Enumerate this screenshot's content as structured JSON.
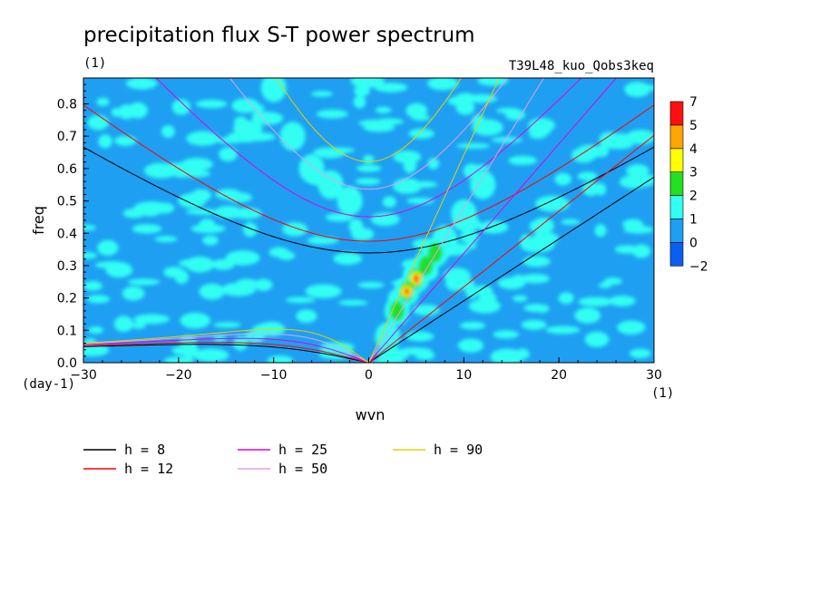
{
  "header": {
    "title": "precipitation flux S-T power spectrum",
    "units": "(1)",
    "experiment": "T39L48_kuo_Qobs3keq"
  },
  "chart_data": {
    "type": "heatmap",
    "xlabel": "wvn",
    "ylabel": "freq",
    "x_units": "(1)",
    "y_units": "(day-1)",
    "xlim": [
      -30,
      30
    ],
    "ylim": [
      0,
      0.88
    ],
    "x_ticks": [
      -30,
      -20,
      -10,
      0,
      10,
      20,
      30
    ],
    "y_ticks": [
      0.0,
      0.1,
      0.2,
      0.3,
      0.4,
      0.5,
      0.6,
      0.7,
      0.8
    ],
    "y_tick_labels": [
      "0.0",
      "0.1",
      "0.2",
      "0.3",
      "0.4",
      "0.5",
      "0.6",
      "0.7",
      "0.8"
    ],
    "x_tick_labels": [
      "-30",
      "-20",
      "-10",
      "0",
      "10",
      "20",
      "30"
    ],
    "colorbar": {
      "labels": [
        "-2",
        "0",
        "1",
        "2",
        "3",
        "4",
        "5",
        "7"
      ],
      "colors": [
        "#0a5ef0",
        "#1e9ff2",
        "#33fff2",
        "#22e022",
        "#ffff00",
        "#ffa500",
        "#ff1010"
      ]
    },
    "background_level_color": "#1e9ff2",
    "features": [
      {
        "name": "kelvin-ridge",
        "x": [
          2,
          3,
          4,
          5,
          6,
          7,
          8,
          10,
          12
        ],
        "y": [
          0.08,
          0.16,
          0.22,
          0.26,
          0.3,
          0.34,
          0.38,
          0.46,
          0.55
        ],
        "max_level": 7
      },
      {
        "name": "high-freq-band",
        "x": [
          -10,
          -8,
          -6,
          -4,
          -2
        ],
        "y": [
          0.85,
          0.7,
          0.6,
          0.55,
          0.5
        ],
        "max_level": 1
      }
    ],
    "series": [
      {
        "name": "h =  8",
        "color": "#000000",
        "h": 8
      },
      {
        "name": "h = 12",
        "color": "#ff0000",
        "h": 12
      },
      {
        "name": "h = 25",
        "color": "#e000e0",
        "h": 25
      },
      {
        "name": "h = 50",
        "color": "#e6a0e6",
        "h": 50
      },
      {
        "name": "h = 90",
        "color": "#e6d000",
        "h": 90
      }
    ]
  }
}
